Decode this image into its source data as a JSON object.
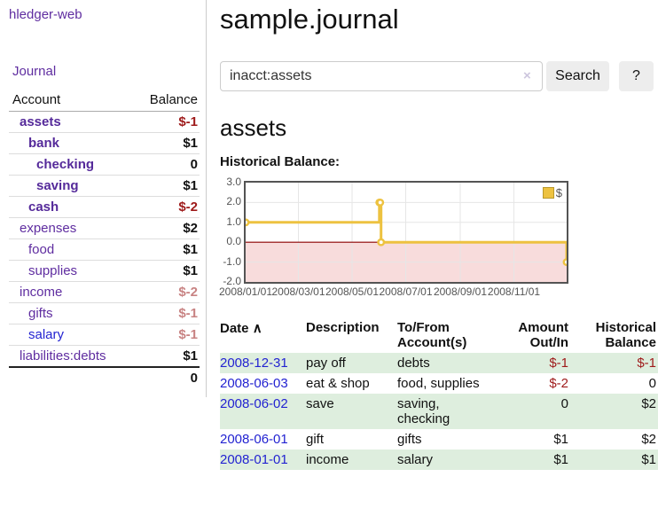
{
  "app": {
    "brand": "hledger-web",
    "nav_journal": "Journal"
  },
  "colors": {
    "link_purple": "#5f2da0",
    "link_blue": "#2323d1",
    "negative_strong": "#9e1a1a",
    "negative_faded": "#c88383",
    "row_stripe_green": "#deeede",
    "chart_line_gold": "#edc240",
    "chart_negative_pink": "#f8dcdc",
    "chart_zero_line": "#8b0000"
  },
  "sidebar": {
    "headers": {
      "account": "Account",
      "balance": "Balance"
    },
    "rows": [
      {
        "account": "assets",
        "balance": "$-1"
      },
      {
        "account": "bank",
        "balance": "$1"
      },
      {
        "account": "checking",
        "balance": "0"
      },
      {
        "account": "saving",
        "balance": "$1"
      },
      {
        "account": "cash",
        "balance": "$-2"
      },
      {
        "account": "expenses",
        "balance": "$2"
      },
      {
        "account": "food",
        "balance": "$1"
      },
      {
        "account": "supplies",
        "balance": "$1"
      },
      {
        "account": "income",
        "balance": "$-2"
      },
      {
        "account": "gifts",
        "balance": "$-1"
      },
      {
        "account": "salary",
        "balance": "$-1"
      },
      {
        "account": "liabilities:debts",
        "balance": "$1"
      }
    ],
    "total": "0"
  },
  "header": {
    "title": "sample.journal"
  },
  "search": {
    "value": "inacct:assets",
    "clear_icon": "×",
    "button_label": "Search",
    "help_label": "?"
  },
  "main": {
    "account_heading": "assets",
    "chart_title": "Historical Balance:"
  },
  "chart_data": {
    "type": "line",
    "title": "Historical Balance:",
    "step": true,
    "xlim": [
      "2008-01-01",
      "2008-12-31"
    ],
    "ylim": [
      -2,
      3
    ],
    "x_ticks": [
      "2008/01/01",
      "2008/03/01",
      "2008/05/01",
      "2008/07/01",
      "2008/09/01",
      "2008/11/01"
    ],
    "y_ticks": [
      "3.0",
      "2.0",
      "1.0",
      "0.0",
      "-1.0",
      "-2.0"
    ],
    "series": [
      {
        "name": "$",
        "color": "#edc240",
        "points": [
          [
            "2008-01-01",
            1
          ],
          [
            "2008-06-01",
            2
          ],
          [
            "2008-06-02",
            2
          ],
          [
            "2008-06-03",
            0
          ],
          [
            "2008-12-31",
            -1
          ]
        ]
      }
    ],
    "negative_fill": "#f8dcdc",
    "zero_line_color": "#8b0000",
    "grid_color": "#e6e6e6",
    "legend": {
      "label": "$",
      "position": "top-right"
    }
  },
  "register": {
    "headers": {
      "date": "Date",
      "sort_indicator": "∧",
      "description": "Description",
      "accounts": "To/From Account(s)",
      "amount": "Amount Out/In",
      "balance": "Historical Balance"
    },
    "rows": [
      {
        "date": "2008-12-31",
        "description": "pay off",
        "accounts": "debts",
        "amount": "$-1",
        "balance": "$-1"
      },
      {
        "date": "2008-06-03",
        "description": "eat & shop",
        "accounts": "food, supplies",
        "amount": "$-2",
        "balance": "0"
      },
      {
        "date": "2008-06-02",
        "description": "save",
        "accounts": "saving, checking",
        "amount": "0",
        "balance": "$2"
      },
      {
        "date": "2008-06-01",
        "description": "gift",
        "accounts": "gifts",
        "amount": "$1",
        "balance": "$2"
      },
      {
        "date": "2008-01-01",
        "description": "income",
        "accounts": "salary",
        "amount": "$1",
        "balance": "$1"
      }
    ]
  }
}
